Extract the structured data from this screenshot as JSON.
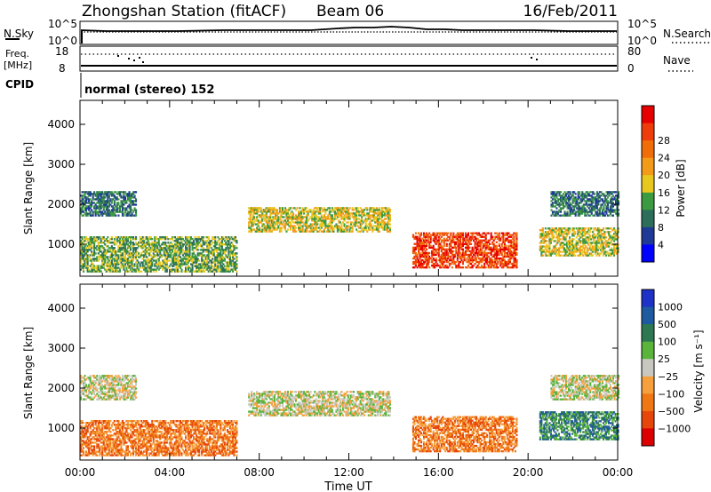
{
  "header": {
    "title": "Zhongshan Station (fitACF)",
    "beam": "Beam 06",
    "date": "16/Feb/2011"
  },
  "noise_panel": {
    "left_label": "N.Sky",
    "right_label": "N.Search",
    "ticks_left": [
      "10^5",
      "10^0"
    ],
    "ticks_right": [
      "10^5",
      "10^0"
    ]
  },
  "freq_panel": {
    "left_label": "Freq.",
    "left_unit": "[MHz]",
    "right_label": "Nave",
    "ticks_left": [
      "18",
      "8"
    ],
    "ticks_right": [
      "80",
      "0"
    ]
  },
  "cpid": {
    "label": "CPID",
    "value": "normal (stereo) 152"
  },
  "colors": {
    "power": [
      "#0000ff",
      "#1e3a96",
      "#2d6e5a",
      "#3c9a41",
      "#e8c81e",
      "#f39b19",
      "#f06e0a",
      "#ee3c0a",
      "#e60000"
    ],
    "velocity": [
      "#1e32c8",
      "#1e5aa0",
      "#2d7850",
      "#5ab43c",
      "#c8c8c0",
      "#f5a03c",
      "#f07814",
      "#e6460a",
      "#dc0000"
    ]
  },
  "chart_data": [
    {
      "type": "heatmap",
      "quantity": "power",
      "xlabel": "",
      "ylabel": "Slant Range [km]",
      "xlim": [
        "00:00",
        "00:00"
      ],
      "ylim": [
        200,
        4600
      ],
      "x_ticks": [
        "00:00",
        "04:00",
        "08:00",
        "12:00",
        "16:00",
        "20:00",
        "00:00"
      ],
      "y_ticks": [
        1000,
        2000,
        3000,
        4000
      ],
      "colorbar": {
        "label": "Power [dB]",
        "ticks": [
          "4",
          "8",
          "12",
          "16",
          "20",
          "24",
          "28"
        ],
        "range": [
          0,
          30
        ]
      },
      "echo_regions": [
        {
          "t_start": "00:00",
          "t_end": "07:00",
          "range_km": [
            300,
            1200
          ],
          "value_db": 10
        },
        {
          "t_start": "00:00",
          "t_end": "02:30",
          "range_km": [
            1700,
            2300
          ],
          "value_db": 9
        },
        {
          "t_start": "07:30",
          "t_end": "13:50",
          "range_km": [
            1300,
            1900
          ],
          "value_db": 14
        },
        {
          "t_start": "14:50",
          "t_end": "19:30",
          "range_km": [
            400,
            1300
          ],
          "value_db": 26
        },
        {
          "t_start": "20:30",
          "t_end": "24:00",
          "range_km": [
            700,
            1400
          ],
          "value_db": 14
        },
        {
          "t_start": "21:00",
          "t_end": "24:00",
          "range_km": [
            1700,
            2300
          ],
          "value_db": 9
        }
      ]
    },
    {
      "type": "heatmap",
      "quantity": "velocity",
      "xlabel": "Time UT",
      "ylabel": "Slant Range [km]",
      "xlim": [
        "00:00",
        "00:00"
      ],
      "ylim": [
        200,
        4600
      ],
      "x_ticks": [
        "00:00",
        "04:00",
        "08:00",
        "12:00",
        "16:00",
        "20:00",
        "00:00"
      ],
      "y_ticks": [
        1000,
        2000,
        3000,
        4000
      ],
      "colorbar": {
        "label": "Velocity [m s⁻¹]",
        "ticks": [
          "1000",
          "500",
          "100",
          "25",
          "−25",
          "−100",
          "−500",
          "−1000"
        ]
      },
      "echo_regions": [
        {
          "t_start": "00:00",
          "t_end": "07:00",
          "range_km": [
            300,
            1200
          ],
          "value_ms": -150
        },
        {
          "t_start": "00:00",
          "t_end": "02:30",
          "range_km": [
            1700,
            2300
          ],
          "value_ms": 0
        },
        {
          "t_start": "07:30",
          "t_end": "13:50",
          "range_km": [
            1300,
            1900
          ],
          "value_ms": 0
        },
        {
          "t_start": "14:50",
          "t_end": "19:30",
          "range_km": [
            400,
            1300
          ],
          "value_ms": -400
        },
        {
          "t_start": "20:30",
          "t_end": "24:00",
          "range_km": [
            700,
            1400
          ],
          "value_ms": 150
        },
        {
          "t_start": "21:00",
          "t_end": "24:00",
          "range_km": [
            1700,
            2300
          ],
          "value_ms": 0
        }
      ]
    }
  ]
}
